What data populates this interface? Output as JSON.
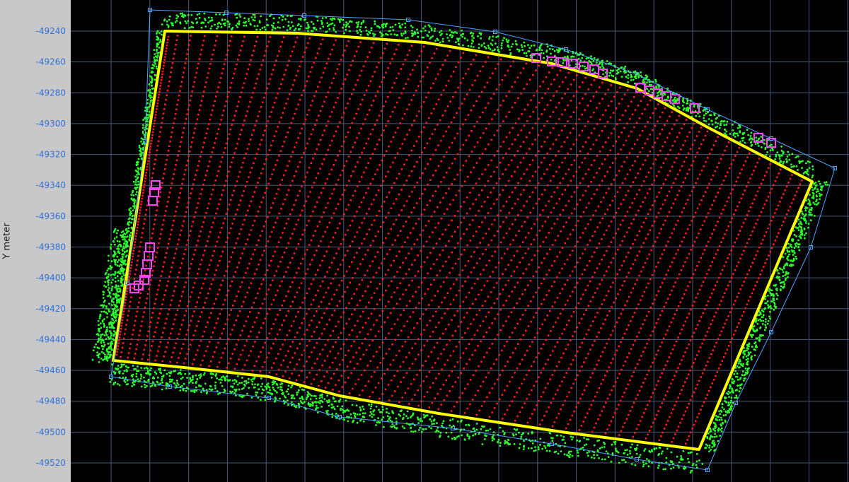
{
  "chart_data": {
    "type": "scatter",
    "ylabel": "Y meter",
    "xlabel": "",
    "title": "",
    "ylim": [
      -49530,
      -49230
    ],
    "y_ticks": [
      -49240,
      -49260,
      -49280,
      -49300,
      -49320,
      -49340,
      -49360,
      -49380,
      -49400,
      -49420,
      -49440,
      -49460,
      -49480,
      -49500,
      -49520
    ],
    "grid": true,
    "colors": {
      "background": "#000000",
      "grid": "#4a5a78",
      "tick_label": "#2f6fd6",
      "boundary_outer": "#4da6ff",
      "field_edge": "#ffff00",
      "headland_points": "#2cff2c",
      "pass_points": "#ff1a1a",
      "markers": "#ff44ff"
    },
    "series": [
      {
        "kind": "headland_points"
      },
      {
        "kind": "field_edge"
      },
      {
        "kind": "pass_points"
      },
      {
        "kind": "markers"
      },
      {
        "kind": "boundary_outer"
      }
    ]
  }
}
